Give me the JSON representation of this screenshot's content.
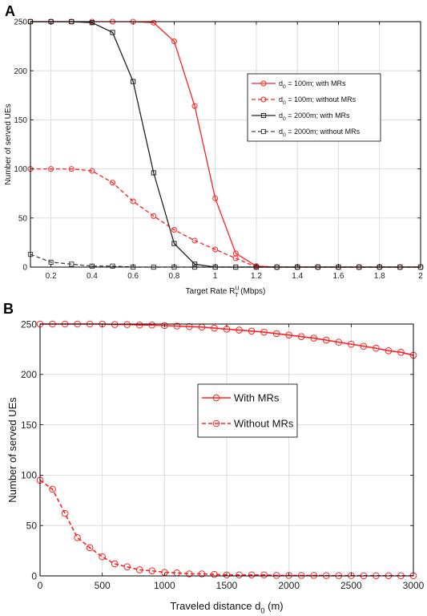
{
  "chart_data": [
    {
      "panel": "A",
      "type": "line",
      "xlabel": "Target Rate R",
      "xlabel_sup": "U",
      "xlabel_sub": "T",
      "xlabel_unit": "(Mbps)",
      "ylabel": "Number of served UEs",
      "xlim": [
        0.1,
        2
      ],
      "ylim": [
        0,
        250
      ],
      "xticks": [
        0.2,
        0.4,
        0.6,
        0.8,
        1,
        1.2,
        1.4,
        1.6,
        1.8,
        2
      ],
      "xtick_labels": [
        "0.2",
        "0.4",
        "0.6",
        "0.8",
        "1",
        "1.2",
        "1.4",
        "1.6",
        "1.8",
        "2"
      ],
      "yticks": [
        0,
        50,
        100,
        150,
        200,
        250
      ],
      "ytick_labels": [
        "0",
        "50",
        "100",
        "150",
        "200",
        "250"
      ],
      "grid": true,
      "legend_position": "top-right",
      "x": [
        0.1,
        0.2,
        0.3,
        0.4,
        0.5,
        0.6,
        0.7,
        0.8,
        0.9,
        1.0,
        1.1,
        1.2,
        1.3,
        1.4,
        1.5,
        1.6,
        1.7,
        1.8,
        1.9,
        2.0
      ],
      "series": [
        {
          "name": "d",
          "name_sub": "0",
          "name_rest": " = 100m; with MRs",
          "color": "#ff2020",
          "dash": "solid",
          "marker": "circle",
          "values": [
            250,
            250,
            250,
            250,
            250,
            250,
            249,
            230,
            164,
            70,
            14,
            1,
            0,
            0,
            0,
            0,
            0,
            0,
            0,
            0
          ]
        },
        {
          "name": "d",
          "name_sub": "0",
          "name_rest": " = 100m; without MRs",
          "color": "#ff2020",
          "dash": "dashed",
          "marker": "circle",
          "values": [
            100,
            100,
            100,
            98,
            86,
            67,
            52,
            38,
            27,
            18,
            9,
            0,
            0,
            0,
            0,
            0,
            0,
            0,
            0,
            0
          ]
        },
        {
          "name": "d",
          "name_sub": "0",
          "name_rest": " = 2000m; with MRs",
          "color": "#222222",
          "dash": "solid",
          "marker": "square",
          "values": [
            250,
            250,
            250,
            249,
            239,
            189,
            96,
            24,
            3,
            0,
            0,
            0,
            0,
            0,
            0,
            0,
            0,
            0,
            0,
            0
          ]
        },
        {
          "name": "d",
          "name_sub": "0",
          "name_rest": " = 2000m; without MRs",
          "color": "#444444",
          "dash": "dashed",
          "marker": "square",
          "values": [
            13,
            5,
            3,
            1,
            1,
            0,
            0,
            0,
            0,
            0,
            0,
            0,
            0,
            0,
            0,
            0,
            0,
            0,
            0,
            0
          ]
        }
      ]
    },
    {
      "panel": "B",
      "type": "line",
      "xlabel": "Traveled distance d",
      "xlabel_sub": "0",
      "xlabel_unit": "(m)",
      "ylabel": "Number of served UEs",
      "xlim": [
        0,
        3000
      ],
      "ylim": [
        0,
        250
      ],
      "xticks": [
        0,
        500,
        1000,
        1500,
        2000,
        2500,
        3000
      ],
      "xtick_labels": [
        "0",
        "500",
        "1000",
        "1500",
        "2000",
        "2500",
        "3000"
      ],
      "yticks": [
        0,
        50,
        100,
        150,
        200,
        250
      ],
      "ytick_labels": [
        "0",
        "50",
        "100",
        "150",
        "200",
        "250"
      ],
      "grid": true,
      "legend_position": "center",
      "x": [
        0,
        100,
        200,
        300,
        400,
        500,
        600,
        700,
        800,
        900,
        1000,
        1100,
        1200,
        1300,
        1400,
        1500,
        1600,
        1700,
        1800,
        1900,
        2000,
        2100,
        2200,
        2300,
        2400,
        2500,
        2600,
        2700,
        2800,
        2900,
        3000
      ],
      "series": [
        {
          "name": "With MRs",
          "color": "#ff2020",
          "dash": "solid",
          "marker": "circle",
          "values": [
            250,
            250,
            250,
            250,
            250,
            250,
            249.5,
            249.5,
            249,
            249,
            248.5,
            248,
            247.5,
            247,
            246,
            245,
            244,
            243,
            242,
            240.5,
            239,
            237.5,
            236,
            234,
            232,
            230,
            228,
            226,
            223.5,
            222,
            219
          ]
        },
        {
          "name": "Without MRs",
          "color": "#ff2020",
          "dash": "dashed",
          "marker": "circle",
          "values": [
            95,
            86,
            62,
            38,
            28,
            19,
            12,
            9,
            6,
            5,
            3.5,
            3,
            2,
            2,
            1.5,
            1,
            1,
            1,
            1,
            0.5,
            0.5,
            0.5,
            0.5,
            0.3,
            0.3,
            0.3,
            0.2,
            0.2,
            0.2,
            0.2,
            0.2
          ]
        }
      ]
    }
  ]
}
